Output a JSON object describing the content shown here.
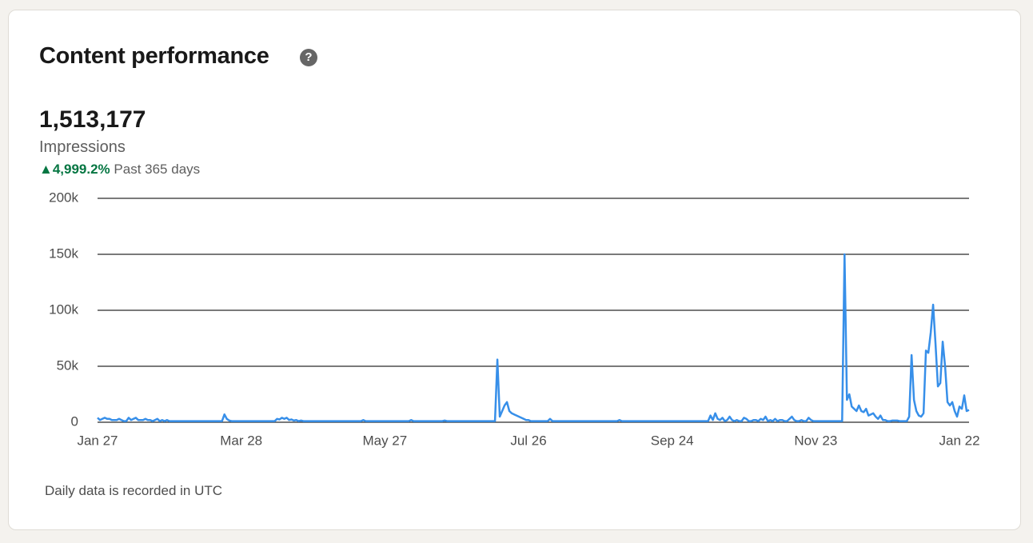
{
  "header": {
    "title": "Content performance"
  },
  "metric": {
    "value": "1,513,177",
    "label": "Impressions",
    "change": "4,999.2%",
    "period": "Past 365 days"
  },
  "chart_data": {
    "type": "line",
    "color": "#378fe9",
    "ylim": [
      0,
      200000
    ],
    "yticks": [
      0,
      {
        "value": 50000,
        "label": "50k"
      },
      {
        "value": 100000,
        "label": "100k"
      },
      {
        "value": 150000,
        "label": "150k"
      },
      {
        "value": 200000,
        "label": "200k"
      }
    ],
    "grid": true,
    "categories": [
      "Jan 27",
      null,
      null,
      null,
      null,
      null,
      null,
      null,
      null,
      null,
      null,
      null,
      null,
      null,
      null,
      null,
      null,
      null,
      null,
      null,
      null,
      null,
      null,
      null,
      null,
      null,
      null,
      null,
      null,
      null,
      null,
      null,
      null,
      null,
      null,
      null,
      null,
      null,
      null,
      null,
      null,
      null,
      null,
      null,
      null,
      null,
      null,
      null,
      null,
      null,
      null,
      null,
      null,
      null,
      null,
      null,
      null,
      null,
      null,
      null,
      "Mar 28",
      null,
      null,
      null,
      null,
      null,
      null,
      null,
      null,
      null,
      null,
      null,
      null,
      null,
      null,
      null,
      null,
      null,
      null,
      null,
      null,
      null,
      null,
      null,
      null,
      null,
      null,
      null,
      null,
      null,
      null,
      null,
      null,
      null,
      null,
      null,
      null,
      null,
      null,
      null,
      null,
      null,
      null,
      null,
      null,
      null,
      null,
      null,
      null,
      null,
      null,
      null,
      null,
      null,
      null,
      null,
      null,
      null,
      null,
      null,
      "May 27",
      null,
      null,
      null,
      null,
      null,
      null,
      null,
      null,
      null,
      null,
      null,
      null,
      null,
      null,
      null,
      null,
      null,
      null,
      null,
      null,
      null,
      null,
      null,
      null,
      null,
      null,
      null,
      null,
      null,
      null,
      null,
      null,
      null,
      null,
      null,
      null,
      null,
      null,
      null,
      null,
      null,
      null,
      null,
      null,
      null,
      null,
      null,
      null,
      null,
      null,
      null,
      null,
      null,
      null,
      null,
      null,
      null,
      null,
      null,
      "Jul 26",
      null,
      null,
      null,
      null,
      null,
      null,
      null,
      null,
      null,
      null,
      null,
      null,
      null,
      null,
      null,
      null,
      null,
      null,
      null,
      null,
      null,
      null,
      null,
      null,
      null,
      null,
      null,
      null,
      null,
      null,
      null,
      null,
      null,
      null,
      null,
      null,
      null,
      null,
      null,
      null,
      null,
      null,
      null,
      null,
      null,
      null,
      null,
      null,
      null,
      null,
      null,
      null,
      null,
      null,
      null,
      null,
      null,
      null,
      null,
      "Sep 24",
      null,
      null,
      null,
      null,
      null,
      null,
      null,
      null,
      null,
      null,
      null,
      null,
      null,
      null,
      null,
      null,
      null,
      null,
      null,
      null,
      null,
      null,
      null,
      null,
      null,
      null,
      null,
      null,
      null,
      null,
      null,
      null,
      null,
      null,
      null,
      null,
      null,
      null,
      null,
      null,
      null,
      null,
      null,
      null,
      null,
      null,
      null,
      null,
      null,
      null,
      null,
      null,
      null,
      null,
      null,
      null,
      null,
      null,
      null,
      "Nov 23",
      null,
      null,
      null,
      null,
      null,
      null,
      null,
      null,
      null,
      null,
      null,
      null,
      null,
      null,
      null,
      null,
      null,
      null,
      null,
      null,
      null,
      null,
      null,
      null,
      null,
      null,
      null,
      null,
      null,
      null,
      null,
      null,
      null,
      null,
      null,
      null,
      null,
      null,
      null,
      null,
      null,
      null,
      null,
      null,
      null,
      null,
      null,
      null,
      null,
      null,
      null,
      null,
      null,
      null,
      null,
      null,
      null,
      null,
      null,
      "Jan 22",
      null,
      null,
      null,
      null
    ],
    "values": [
      4000,
      2000,
      3000,
      4000,
      3000,
      3000,
      2000,
      2000,
      2000,
      3000,
      2000,
      1000,
      1000,
      4000,
      2000,
      3000,
      4000,
      2000,
      2000,
      2000,
      3000,
      2000,
      2000,
      1000,
      2000,
      3000,
      1000,
      2000,
      1000,
      2000,
      1000,
      1000,
      1000,
      1000,
      1000,
      1000,
      1000,
      1000,
      1000,
      1000,
      1000,
      1000,
      1000,
      1000,
      1000,
      1000,
      1000,
      1000,
      1000,
      1000,
      1000,
      1000,
      1000,
      7000,
      3000,
      1500,
      1000,
      1000,
      1000,
      1000,
      1000,
      1000,
      1000,
      1000,
      1000,
      1000,
      1000,
      1000,
      1000,
      1000,
      1000,
      1000,
      1000,
      1000,
      1000,
      3000,
      2500,
      4000,
      3000,
      4000,
      2000,
      2500,
      1500,
      2000,
      1000,
      1500,
      1000,
      1000,
      1000,
      1000,
      1000,
      1000,
      1000,
      1000,
      1000,
      1000,
      1000,
      1000,
      1000,
      1000,
      1000,
      1000,
      1000,
      1000,
      1000,
      1000,
      1000,
      1000,
      1000,
      1000,
      1000,
      2000,
      1000,
      1000,
      1000,
      1000,
      1000,
      1000,
      1000,
      1000,
      1000,
      1000,
      1000,
      1000,
      1000,
      1000,
      1000,
      1000,
      1000,
      1000,
      1000,
      2000,
      1000,
      1000,
      1000,
      1000,
      1000,
      1000,
      1000,
      1000,
      1000,
      1000,
      1000,
      1000,
      1000,
      1500,
      1000,
      1000,
      1000,
      1000,
      1000,
      1000,
      1000,
      1000,
      1000,
      1000,
      1000,
      1000,
      1000,
      1000,
      1000,
      1000,
      1000,
      1000,
      1000,
      1000,
      1000,
      56000,
      5000,
      10000,
      15000,
      18000,
      10000,
      8000,
      7000,
      6000,
      5000,
      4000,
      3000,
      2000,
      2000,
      1000,
      1000,
      1000,
      1000,
      1000,
      1000,
      1000,
      1000,
      3000,
      1000,
      1000,
      1000,
      1000,
      1000,
      1000,
      1000,
      1000,
      1000,
      1000,
      1000,
      1000,
      1000,
      1000,
      1000,
      1000,
      1000,
      1000,
      1000,
      1000,
      1000,
      1000,
      1000,
      1000,
      1000,
      1000,
      1000,
      1000,
      2000,
      1000,
      1000,
      1000,
      1000,
      1000,
      1000,
      1000,
      1000,
      1000,
      1000,
      1000,
      1000,
      1000,
      1000,
      1000,
      1000,
      1000,
      1000,
      1000,
      1000,
      1000,
      1000,
      1000,
      1000,
      1000,
      1000,
      1000,
      1000,
      1000,
      1000,
      1000,
      1000,
      1000,
      1000,
      1000,
      1000,
      1000,
      6000,
      2000,
      8000,
      3000,
      2000,
      4000,
      1000,
      2000,
      5000,
      2000,
      1000,
      2000,
      1000,
      1000,
      4000,
      3000,
      1000,
      1000,
      2000,
      2000,
      1000,
      3000,
      2000,
      5000,
      1000,
      2000,
      1000,
      3000,
      1000,
      2000,
      2000,
      1000,
      1000,
      3000,
      5000,
      2000,
      1000,
      1000,
      2000,
      1000,
      1000,
      4000,
      2000,
      1000,
      1000,
      1000,
      1000,
      1000,
      1000,
      1000,
      1000,
      1000,
      1000,
      1000,
      1000,
      1000,
      150000,
      20000,
      25000,
      14000,
      12000,
      10000,
      15000,
      10000,
      9000,
      12000,
      6000,
      7000,
      8000,
      5000,
      3000,
      6000,
      2000,
      2000,
      1000,
      1000,
      1500,
      1500,
      1500,
      1000,
      1000,
      1000,
      1000,
      5000,
      60000,
      20000,
      10000,
      6000,
      5000,
      8000,
      64000,
      62000,
      80000,
      105000,
      70000,
      32000,
      35000,
      72000,
      50000,
      18000,
      15000,
      18000,
      10000,
      5000,
      14000,
      12000,
      24000,
      10000,
      11000
    ]
  },
  "footer": {
    "note": "Daily data is recorded in UTC"
  }
}
